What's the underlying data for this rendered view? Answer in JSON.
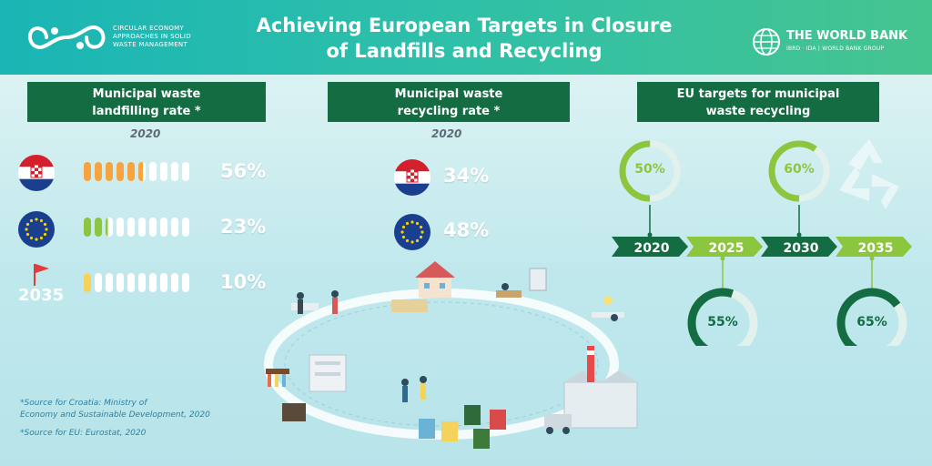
{
  "header": {
    "org_text": "CIRCULAR ECONOMY APPROACHES IN SOLID WASTE MANAGEMENT",
    "title_line1": "Achieving European Targets in Closure",
    "title_line2": "of Landfills and Recycling",
    "wb_name": "THE WORLD BANK",
    "wb_sub": "IBRD · IDA | WORLD BANK GROUP"
  },
  "landfill": {
    "title_line1": "Municipal waste",
    "title_line2": "landfilling rate *",
    "year": "2020",
    "rows": [
      {
        "name": "Croatia",
        "value": "56%",
        "rate": 56
      },
      {
        "name": "EU",
        "value": "23%",
        "rate": 23
      },
      {
        "name": "2035",
        "value": "10%",
        "rate": 10
      }
    ]
  },
  "recycling": {
    "title_line1": "Municipal waste",
    "title_line2": "recycling rate *",
    "year": "2020",
    "croatia": "34%",
    "eu": "48%"
  },
  "targets": {
    "title_line1": "EU targets for municipal",
    "title_line2": "waste recycling",
    "years": [
      "2020",
      "2025",
      "2030",
      "2035"
    ],
    "values": [
      "50%",
      "55%",
      "60%",
      "65%"
    ],
    "fractions": [
      0.5,
      0.55,
      0.6,
      0.65
    ]
  },
  "sources": {
    "croatia_1": "*Source for Croatia: Ministry of",
    "croatia_2": "Economy and Sustainable Development, 2020",
    "eu": "*Source for EU: Eurostat, 2020"
  },
  "colors": {
    "dark_green": "#146c43",
    "light_green": "#8cc63f",
    "orange": "#f7a440",
    "yellow": "#f5d35a"
  }
}
